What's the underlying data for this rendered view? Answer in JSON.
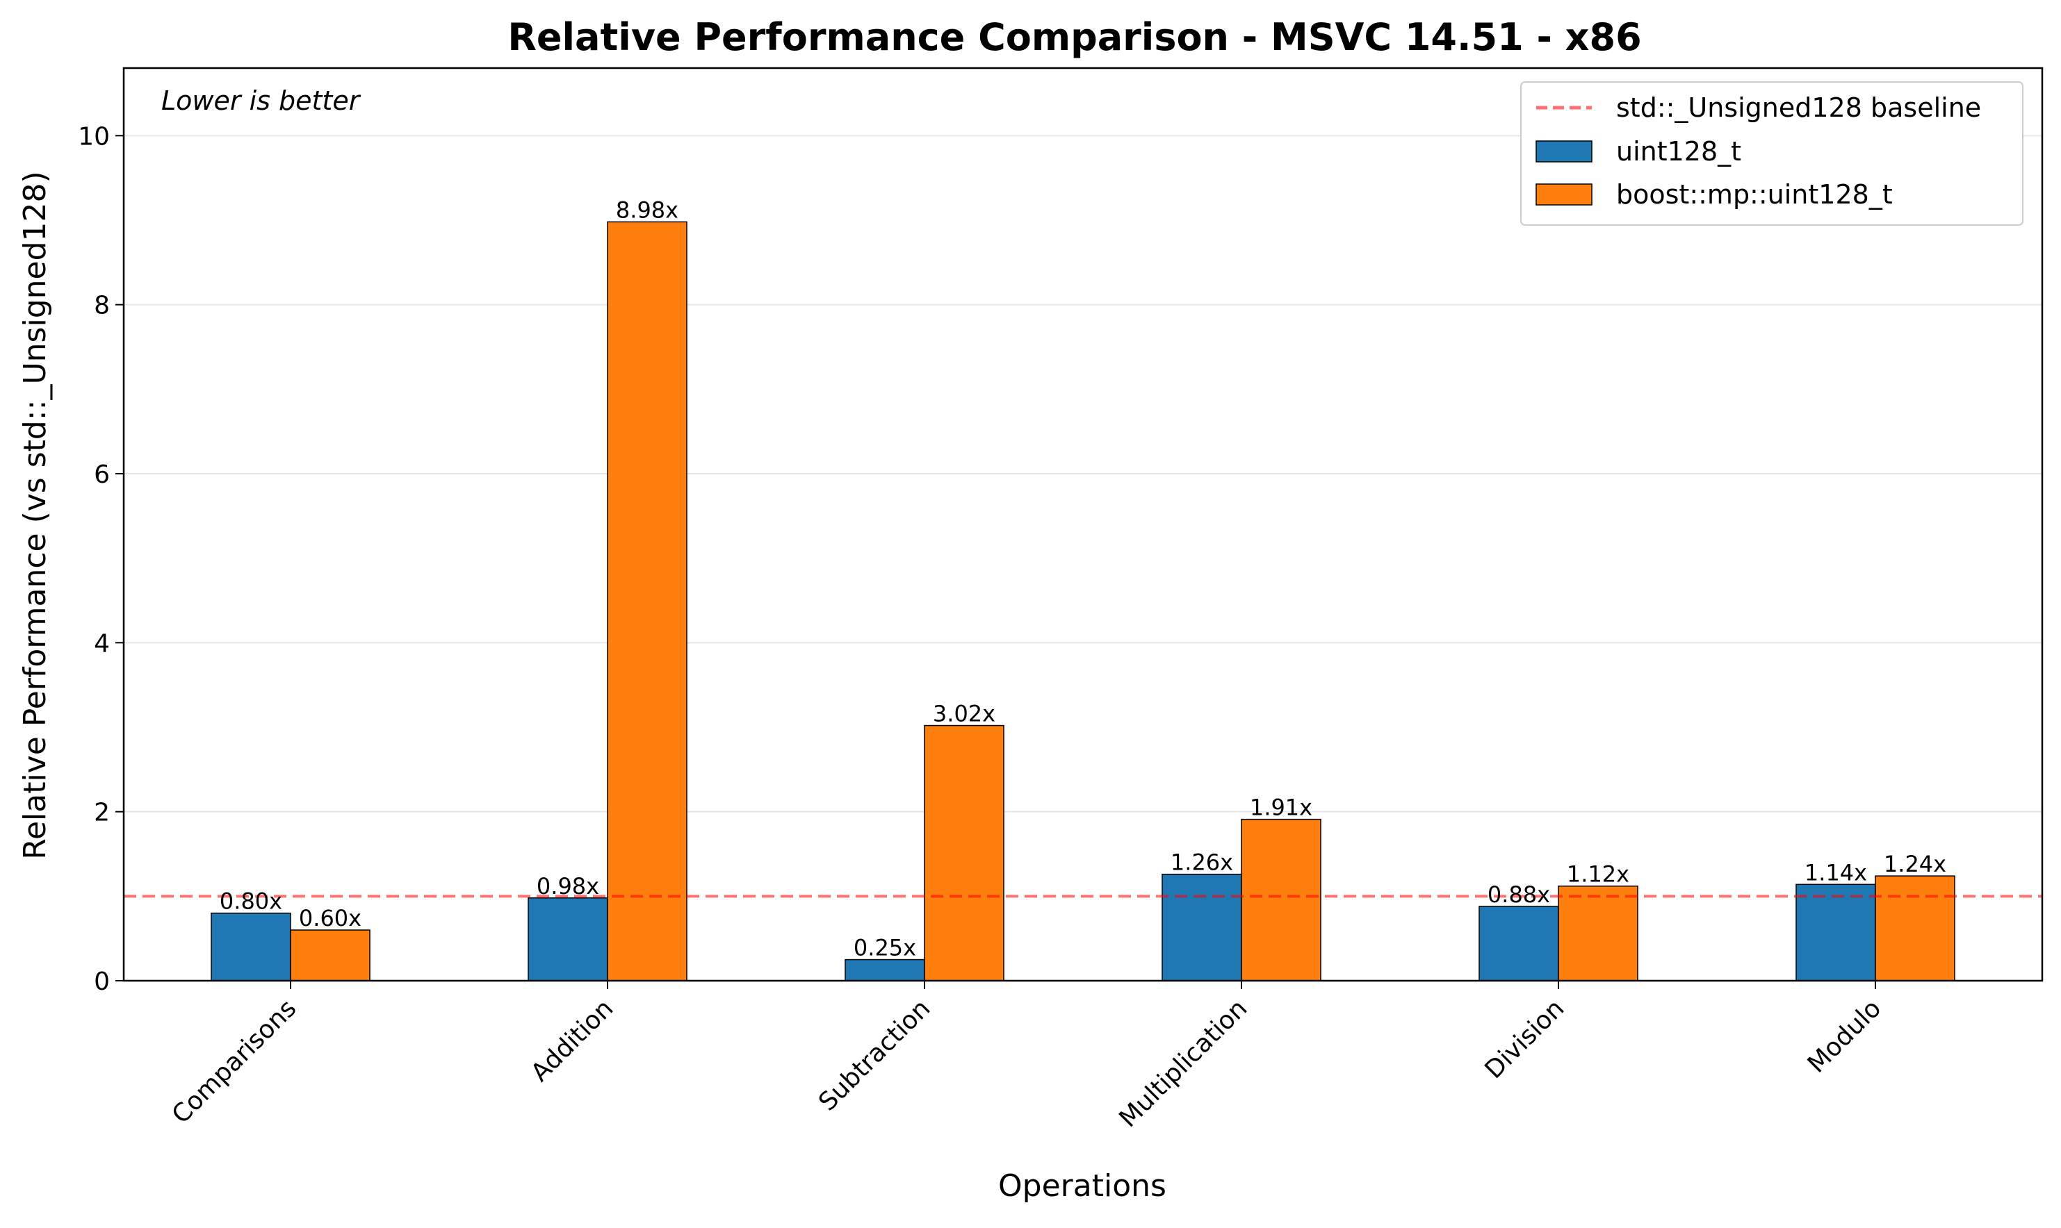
{
  "chart_data": {
    "type": "bar",
    "title": "Relative Performance Comparison - MSVC 14.51 - x86",
    "xlabel": "Operations",
    "ylabel": "Relative Performance (vs std::_Unsigned128)",
    "annotation": "Lower is better",
    "categories": [
      "Comparisons",
      "Addition",
      "Subtraction",
      "Multiplication",
      "Division",
      "Modulo"
    ],
    "series": [
      {
        "name": "uint128_t",
        "color": "#1f77b4",
        "values": [
          0.8,
          0.98,
          0.25,
          1.26,
          0.88,
          1.14
        ],
        "labels": [
          "0.80x",
          "0.98x",
          "0.25x",
          "1.26x",
          "0.88x",
          "1.14x"
        ]
      },
      {
        "name": "boost::mp::uint128_t",
        "color": "#ff7f0e",
        "values": [
          0.6,
          8.98,
          3.02,
          1.91,
          1.12,
          1.24
        ],
        "labels": [
          "0.60x",
          "8.98x",
          "3.02x",
          "1.91x",
          "1.12x",
          "1.24x"
        ]
      }
    ],
    "baseline": {
      "name": "std::_Unsigned128 baseline",
      "value": 1.0,
      "color": "#ff0000",
      "style": "dashed"
    },
    "ylim": [
      0,
      10.8
    ],
    "yticks": [
      0,
      2,
      4,
      6,
      8,
      10
    ],
    "ytick_labels": [
      "0",
      "2",
      "4",
      "6",
      "8",
      "10"
    ],
    "grid": "y",
    "legend_position": "top-right"
  }
}
